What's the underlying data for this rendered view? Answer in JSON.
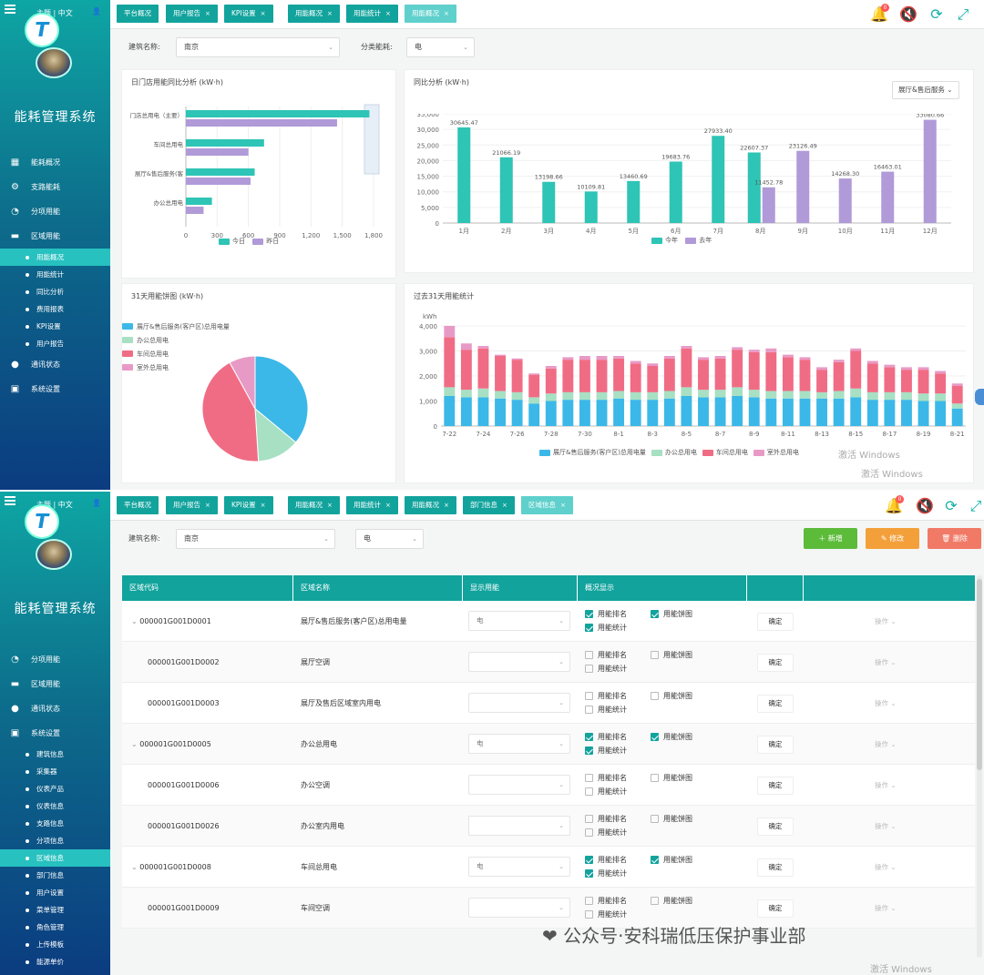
{
  "sidebar": {
    "lang": "主题 | 中文",
    "title": "能耗管理系统",
    "logo_letter": "T"
  },
  "top": {
    "tabs": [
      {
        "label": "平台概况",
        "closable": false
      },
      {
        "label": "用户报告",
        "closable": true
      },
      {
        "label": "KPI设置",
        "closable": true
      },
      {
        "label": "用能概况",
        "closable": true
      },
      {
        "label": "用能统计",
        "closable": true
      },
      {
        "label": "用能概况",
        "closable": true,
        "active": true
      }
    ],
    "nav": [
      {
        "icon": "building-icon",
        "glyph": "▦",
        "label": "能耗概况"
      },
      {
        "icon": "branch-icon",
        "glyph": "⚙",
        "label": "支路能耗"
      },
      {
        "icon": "clock-icon",
        "glyph": "◔",
        "label": "分项用能"
      },
      {
        "icon": "folder-icon",
        "glyph": "▬",
        "label": "区域用能"
      }
    ],
    "sub": [
      {
        "label": "用能概况",
        "active": true
      },
      {
        "label": "用能统计"
      },
      {
        "label": "同比分析"
      },
      {
        "label": "费用报表"
      },
      {
        "label": "KPI设置"
      },
      {
        "label": "用户报告"
      }
    ],
    "nav2": [
      {
        "icon": "location-icon",
        "glyph": "●",
        "label": "通讯状态"
      },
      {
        "icon": "settings-icon",
        "glyph": "▣",
        "label": "系统设置"
      }
    ],
    "building_label": "建筑名称:",
    "building_value": "南京",
    "category_label": "分类能耗:",
    "category_value": "电",
    "card1_title": "日门店用能同比分析 (kW·h)",
    "card2_title": "同比分析 (kW·h)",
    "card2_dropdown": "展厅&售后服务",
    "card3_title": "31天用能饼图 (kW·h)",
    "card4_title": "过去31天用能统计",
    "card4_unit": "kWh",
    "windows_wm": "激活 Windows"
  },
  "bottom": {
    "tabs": [
      {
        "label": "平台概况",
        "closable": false
      },
      {
        "label": "用户报告",
        "closable": true
      },
      {
        "label": "KPI设置",
        "closable": true
      },
      {
        "label": "用能概况",
        "closable": true
      },
      {
        "label": "用能统计",
        "closable": true
      },
      {
        "label": "用能概况",
        "closable": true
      },
      {
        "label": "部门信息",
        "closable": true
      },
      {
        "label": "区域信息",
        "closable": true,
        "active": true
      }
    ],
    "nav": [
      {
        "icon": "clock-icon",
        "glyph": "◔",
        "label": "分项用能"
      },
      {
        "icon": "folder-icon",
        "glyph": "▬",
        "label": "区域用能"
      },
      {
        "icon": "location-icon",
        "glyph": "●",
        "label": "通讯状态"
      },
      {
        "icon": "settings-icon",
        "glyph": "▣",
        "label": "系统设置"
      }
    ],
    "sub": [
      {
        "label": "建筑信息"
      },
      {
        "label": "采集器"
      },
      {
        "label": "仪表产品"
      },
      {
        "label": "仪表信息"
      },
      {
        "label": "支路信息"
      },
      {
        "label": "分项信息"
      },
      {
        "label": "区域信息",
        "active": true
      },
      {
        "label": "部门信息"
      },
      {
        "label": "用户设置"
      },
      {
        "label": "菜单管理"
      },
      {
        "label": "角色管理"
      },
      {
        "label": "上传模板"
      },
      {
        "label": "能源单价"
      }
    ],
    "building_label": "建筑名称:",
    "building_value": "南京",
    "category_value": "电",
    "btn_add": "新增",
    "btn_edit": "修改",
    "btn_delete": "删除",
    "headers": [
      "区域代码",
      "区域名称",
      "显示用能",
      "概况显示"
    ],
    "cb_rank": "用能排名",
    "cb_pie": "用能饼图",
    "cb_stat": "用能统计",
    "confirm": "确定",
    "op": "操作",
    "rows": [
      {
        "code": "000001G001D0001",
        "name": "展厅&售后服务(客户区)总用电量",
        "energy": "电",
        "expand": true,
        "checked": true
      },
      {
        "code": "000001G001D0002",
        "name": "展厅空调",
        "energy": "",
        "expand": false,
        "checked": false
      },
      {
        "code": "000001G001D0003",
        "name": "展厅及售后区域室内用电",
        "energy": "",
        "expand": false,
        "checked": false
      },
      {
        "code": "000001G001D0005",
        "name": "办公总用电",
        "energy": "电",
        "expand": true,
        "checked": true
      },
      {
        "code": "000001G001D0006",
        "name": "办公空调",
        "energy": "",
        "expand": false,
        "checked": false
      },
      {
        "code": "000001G001D0026",
        "name": "办公室内用电",
        "energy": "",
        "expand": false,
        "checked": false
      },
      {
        "code": "000001G001D0008",
        "name": "车间总用电",
        "energy": "电",
        "expand": true,
        "checked": true
      },
      {
        "code": "000001G001D0009",
        "name": "车间空调",
        "energy": "",
        "expand": false,
        "checked": false
      }
    ],
    "windows_wm": "激活 Windows",
    "wechat_wm": "公众号·安科瑞低压保护事业部"
  },
  "colors": {
    "teal": "#2ec4b6",
    "purple": "#b09ad8",
    "blue": "#3bb8e8",
    "green": "#a7e0c3",
    "red": "#f06c84",
    "pink": "#e89ac6",
    "add": "#5dbb3a",
    "edit": "#f4a03a",
    "del": "#f07a66"
  },
  "chart_data": [
    {
      "type": "bar",
      "orientation": "horizontal",
      "title": "日门店用能同比分析 (kW·h)",
      "categories": [
        "门店总用电（主要）",
        "车间总用电",
        "展厅&售后服务(客户区)总用电量",
        "办公总用电"
      ],
      "series": [
        {
          "name": "今日",
          "values": [
            1760,
            750,
            660,
            250
          ]
        },
        {
          "name": "昨日",
          "values": [
            1450,
            600,
            620,
            170
          ]
        }
      ],
      "xticks": [
        "0",
        "300",
        "600",
        "900",
        "1,200",
        "1,500",
        "1,800"
      ],
      "xlim": [
        0,
        1800
      ]
    },
    {
      "type": "bar",
      "title": "同比分析 (kW·h)",
      "categories": [
        "1月",
        "2月",
        "3月",
        "4月",
        "5月",
        "6月",
        "7月",
        "8月",
        "9月",
        "10月",
        "11月",
        "12月"
      ],
      "series": [
        {
          "name": "今年",
          "values": [
            30645.47,
            21066.19,
            13198.66,
            10109.81,
            13460.69,
            19683.76,
            27933.4,
            22607.37,
            null,
            null,
            null,
            null
          ]
        },
        {
          "name": "去年",
          "values": [
            null,
            null,
            null,
            null,
            null,
            null,
            null,
            11452.78,
            23126.49,
            14268.3,
            16463.01,
            33080.66
          ]
        }
      ],
      "labels": [
        "30645.47",
        "21066.19",
        "13198.66",
        "10109.81",
        "13460.69",
        "19683.76",
        "27933.40",
        "22607.37",
        "11452.78",
        "23126.49",
        "14268.30",
        "16463.01",
        "33080.66"
      ],
      "yticks": [
        "0",
        "5,000",
        "10,000",
        "15,000",
        "20,000",
        "25,000",
        "30,000",
        "35,000"
      ],
      "ylim": [
        0,
        35000
      ]
    },
    {
      "type": "pie",
      "title": "31天用能饼图 (kW·h)",
      "series": [
        {
          "name": "展厅&售后服务(客户区)总用电量",
          "value": 36
        },
        {
          "name": "办公总用电",
          "value": 13
        },
        {
          "name": "车间总用电",
          "value": 43
        },
        {
          "name": "室外总用电",
          "value": 8
        }
      ]
    },
    {
      "type": "bar",
      "stacked": true,
      "title": "过去31天用能统计",
      "ylabel": "kWh",
      "categories": [
        "7-22",
        "7-23",
        "7-24",
        "7-25",
        "7-26",
        "7-27",
        "7-28",
        "7-29",
        "7-30",
        "7-31",
        "8-1",
        "8-2",
        "8-3",
        "8-4",
        "8-5",
        "8-6",
        "8-7",
        "8-8",
        "8-9",
        "8-10",
        "8-11",
        "8-12",
        "8-13",
        "8-14",
        "8-15",
        "8-16",
        "8-17",
        "8-18",
        "8-19",
        "8-20",
        "8-21"
      ],
      "xticks": [
        "7-22",
        "7-24",
        "7-26",
        "7-28",
        "7-30",
        "8-1",
        "8-3",
        "8-5",
        "8-7",
        "8-9",
        "8-11",
        "8-13",
        "8-15",
        "8-17",
        "8-19",
        "8-21"
      ],
      "yticks": [
        "0",
        "1,000",
        "2,000",
        "3,000",
        "4,000"
      ],
      "ylim": [
        0,
        4000
      ],
      "series": [
        {
          "name": "展厅&售后服务(客户区)总用电量",
          "values": [
            1200,
            1150,
            1150,
            1100,
            1050,
            900,
            1000,
            1050,
            1050,
            1050,
            1100,
            1050,
            1050,
            1100,
            1200,
            1150,
            1150,
            1200,
            1150,
            1100,
            1100,
            1100,
            1100,
            1100,
            1150,
            1050,
            1050,
            1050,
            1000,
            1000,
            700
          ]
        },
        {
          "name": "办公总用电",
          "values": [
            350,
            300,
            350,
            300,
            300,
            250,
            300,
            300,
            300,
            300,
            300,
            300,
            300,
            300,
            350,
            300,
            300,
            350,
            300,
            300,
            300,
            300,
            250,
            300,
            350,
            300,
            300,
            300,
            300,
            300,
            200
          ]
        },
        {
          "name": "车间总用电",
          "values": [
            2000,
            1600,
            1600,
            1400,
            1300,
            900,
            1000,
            1300,
            1300,
            1300,
            1300,
            1150,
            1050,
            1300,
            1550,
            1200,
            1250,
            1500,
            1500,
            1550,
            1350,
            1250,
            900,
            1150,
            1500,
            1150,
            1000,
            900,
            950,
            800,
            700
          ]
        },
        {
          "name": "室外总用电",
          "values": [
            450,
            250,
            100,
            50,
            50,
            50,
            100,
            100,
            150,
            150,
            100,
            100,
            100,
            100,
            100,
            100,
            100,
            100,
            100,
            150,
            100,
            100,
            100,
            100,
            100,
            100,
            100,
            100,
            100,
            100,
            100
          ]
        }
      ]
    }
  ]
}
